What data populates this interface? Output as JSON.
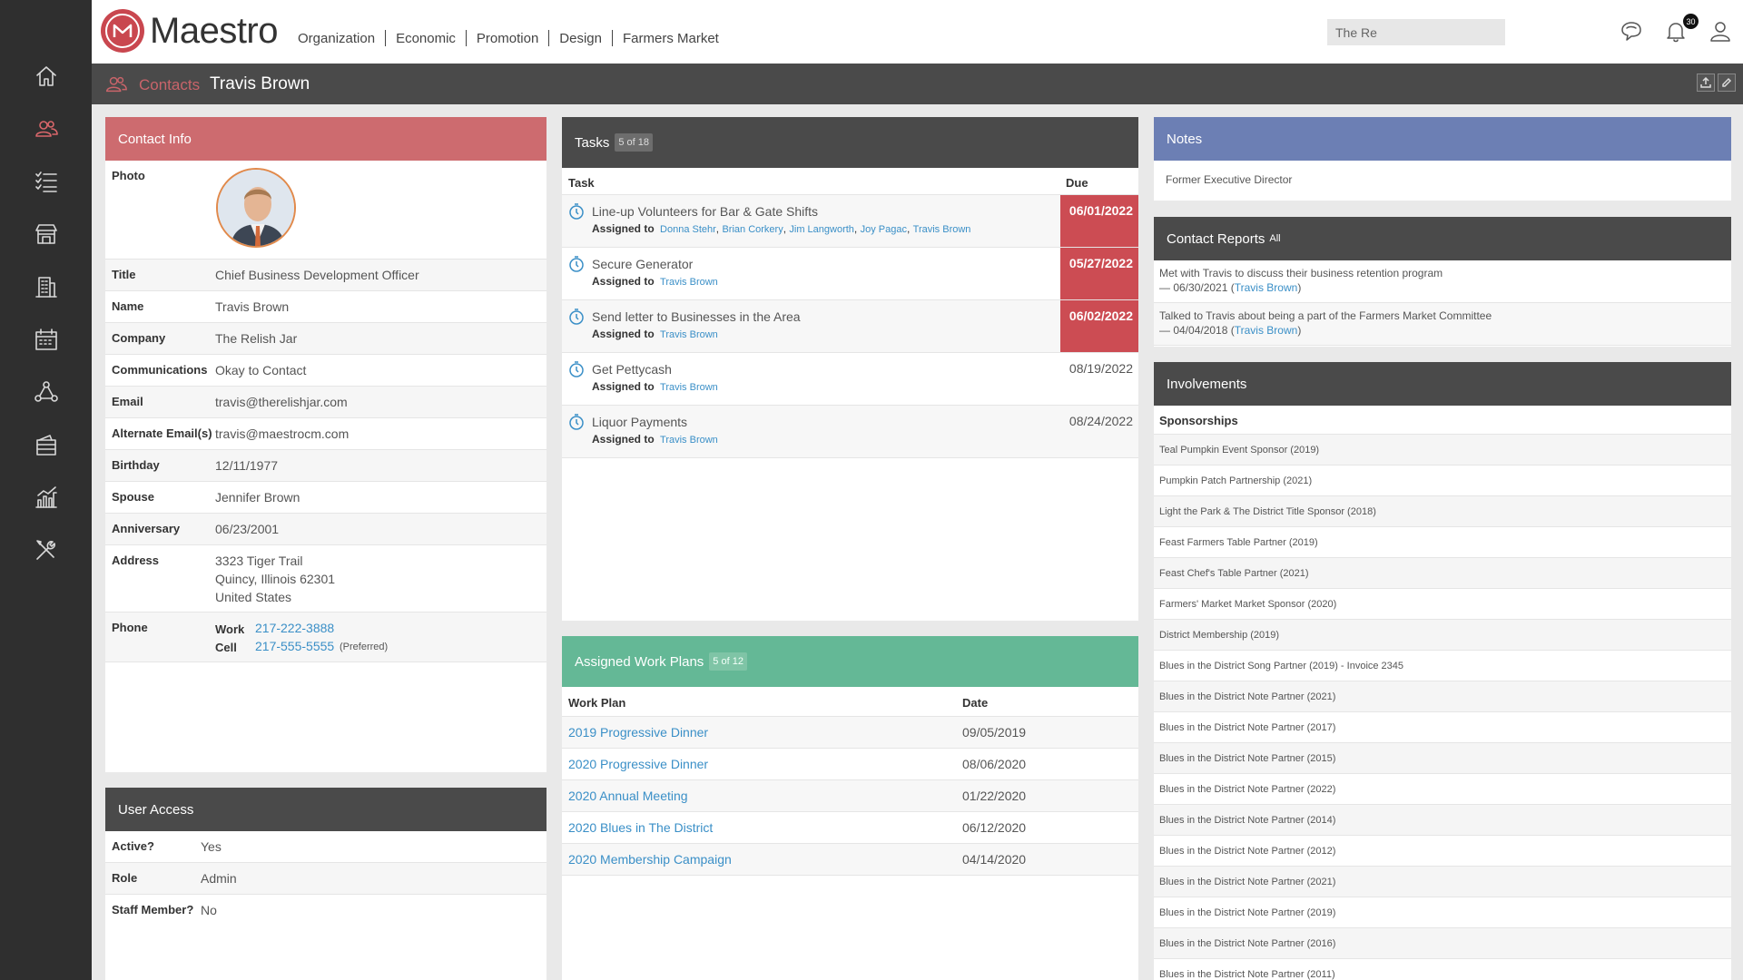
{
  "app": {
    "logo_text": "Maestro"
  },
  "topnav": [
    "Organization",
    "Economic",
    "Promotion",
    "Design",
    "Farmers Market"
  ],
  "search": {
    "value": "The Re"
  },
  "notifications": {
    "count": "30"
  },
  "breadcrumb": {
    "section": "Contacts",
    "current": "Travis Brown"
  },
  "sidebar_icons": [
    "home-icon",
    "contacts-icon",
    "tasks-icon",
    "market-icon",
    "building-icon",
    "calendar-icon",
    "network-icon",
    "wallet-icon",
    "reports-icon",
    "tools-icon"
  ],
  "contact_info": {
    "header": "Contact Info",
    "photo_label": "Photo",
    "fields": {
      "title": {
        "label": "Title",
        "value": "Chief Business Development Officer"
      },
      "name": {
        "label": "Name",
        "value": "Travis Brown"
      },
      "company": {
        "label": "Company",
        "value": "The Relish Jar"
      },
      "communications": {
        "label": "Communications",
        "value": "Okay to Contact"
      },
      "email": {
        "label": "Email",
        "value": "travis@therelishjar.com"
      },
      "alt_email": {
        "label": "Alternate Email(s)",
        "value": "travis@maestrocm.com"
      },
      "birthday": {
        "label": "Birthday",
        "value": "12/11/1977"
      },
      "spouse": {
        "label": "Spouse",
        "value": "Jennifer Brown"
      },
      "anniversary": {
        "label": "Anniversary",
        "value": "06/23/2001"
      },
      "address": {
        "label": "Address",
        "line1": "3323 Tiger Trail",
        "line2": "Quincy, Illinois 62301",
        "line3": "United States"
      }
    },
    "phone": {
      "label": "Phone",
      "work_label": "Work",
      "work": "217-222-3888",
      "cell_label": "Cell",
      "cell": "217-555-5555",
      "cell_note": "(Preferred)"
    }
  },
  "user_access": {
    "header": "User Access",
    "rows": [
      {
        "label": "Active?",
        "value": "Yes"
      },
      {
        "label": "Role",
        "value": "Admin"
      },
      {
        "label": "Staff Member?",
        "value": "No"
      }
    ]
  },
  "tasks": {
    "header": "Tasks",
    "count": "5 of 18",
    "col_task": "Task",
    "col_due": "Due",
    "assigned_label": "Assigned to",
    "rows": [
      {
        "name": "Line-up Volunteers for Bar & Gate Shifts",
        "assignees": [
          "Donna Stehr",
          "Brian Corkery",
          "Jim Langworth",
          "Joy Pagac",
          "Travis Brown"
        ],
        "due": "06/01/2022",
        "overdue": true
      },
      {
        "name": "Secure Generator",
        "assignees": [
          "Travis Brown"
        ],
        "due": "05/27/2022",
        "overdue": true
      },
      {
        "name": "Send letter to Businesses in the Area",
        "assignees": [
          "Travis Brown"
        ],
        "due": "06/02/2022",
        "overdue": true
      },
      {
        "name": "Get Pettycash",
        "assignees": [
          "Travis Brown"
        ],
        "due": "08/19/2022",
        "overdue": false
      },
      {
        "name": "Liquor Payments",
        "assignees": [
          "Travis Brown"
        ],
        "due": "08/24/2022",
        "overdue": false
      }
    ]
  },
  "work_plans": {
    "header": "Assigned Work Plans",
    "count": "5 of 12",
    "col_plan": "Work Plan",
    "col_date": "Date",
    "rows": [
      {
        "name": "2019 Progressive Dinner",
        "date": "09/05/2019"
      },
      {
        "name": "2020 Progressive Dinner",
        "date": "08/06/2020"
      },
      {
        "name": "2020 Annual Meeting",
        "date": "01/22/2020"
      },
      {
        "name": "2020 Blues in The District",
        "date": "06/12/2020"
      },
      {
        "name": "2020 Membership Campaign",
        "date": "04/14/2020"
      }
    ]
  },
  "notes": {
    "header": "Notes",
    "text": "Former Executive Director"
  },
  "contact_reports": {
    "header": "Contact Reports",
    "all_link": "All",
    "rows": [
      {
        "text": "Met with Travis to discuss their business retention program",
        "date": "— 06/30/2021 (",
        "person": "Travis Brown",
        "close": ")"
      },
      {
        "text": "Talked to Travis about being a part of the Farmers Market Committee",
        "date": "— 04/04/2018 (",
        "person": "Travis Brown",
        "close": ")"
      }
    ]
  },
  "involvements": {
    "header": "Involvements",
    "section": "Sponsorships",
    "items": [
      "Teal Pumpkin Event Sponsor (2019)",
      "Pumpkin Patch Partnership (2021)",
      "Light the Park & The District Title Sponsor (2018)",
      "Feast Farmers Table Partner (2019)",
      "Feast Chef's Table Partner (2021)",
      "Farmers' Market Market Sponsor (2020)",
      "District Membership (2019)",
      "Blues in the District Song Partner (2019) - Invoice 2345",
      "Blues in the District Note Partner (2021)",
      "Blues in the District Note Partner (2017)",
      "Blues in the District Note Partner (2015)",
      "Blues in the District Note Partner (2022)",
      "Blues in the District Note Partner (2014)",
      "Blues in the District Note Partner (2012)",
      "Blues in the District Note Partner (2021)",
      "Blues in the District Note Partner (2019)",
      "Blues in the District Note Partner (2016)",
      "Blues in the District Note Partner (2011)"
    ]
  },
  "colors": {
    "contact_header": "#cd6b6f",
    "dark_header": "#4a4a4a",
    "notes_header": "#6c7fb4",
    "workplans_header": "#64b896",
    "overdue": "#cc4c53",
    "link": "#3a8fc7"
  }
}
